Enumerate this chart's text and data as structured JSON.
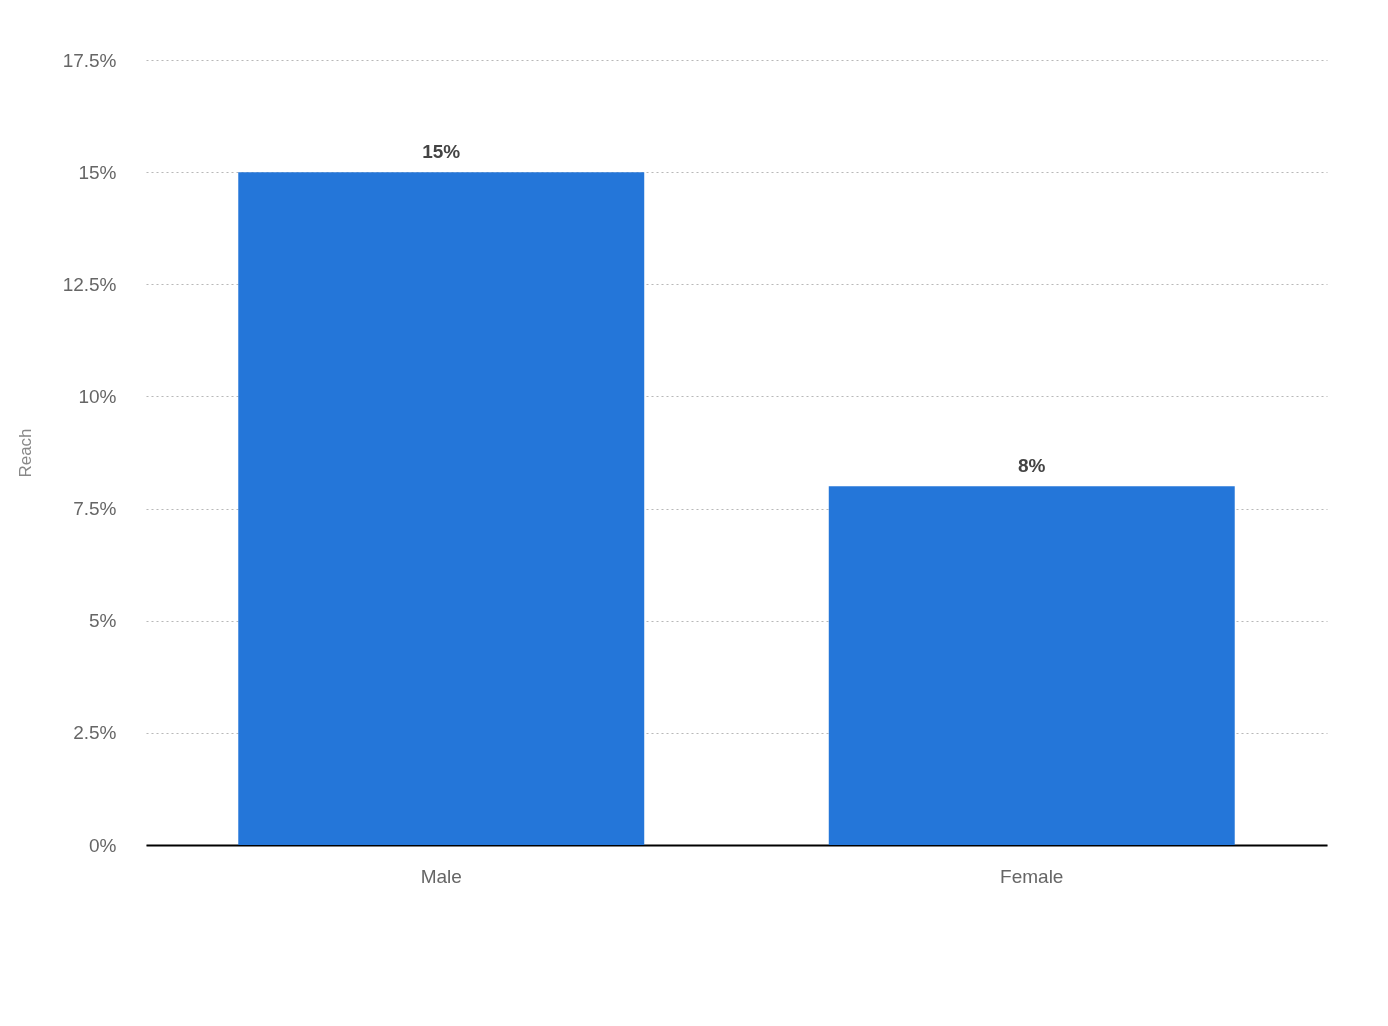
{
  "chart_data": {
    "type": "bar",
    "ylabel": "Reach",
    "categories": [
      "Male",
      "Female"
    ],
    "values": [
      15,
      8
    ],
    "value_labels": [
      "15%",
      "8%"
    ],
    "color": "#2476d9",
    "ylim": [
      0,
      17.5
    ],
    "yticks": [
      {
        "value": 0,
        "label": "0%"
      },
      {
        "value": 2.5,
        "label": "2.5%"
      },
      {
        "value": 5,
        "label": "5%"
      },
      {
        "value": 7.5,
        "label": "7.5%"
      },
      {
        "value": 10,
        "label": "10%"
      },
      {
        "value": 12.5,
        "label": "12.5%"
      },
      {
        "value": 15,
        "label": "15%"
      },
      {
        "value": 17.5,
        "label": "17.5%"
      }
    ],
    "grid": "y"
  }
}
